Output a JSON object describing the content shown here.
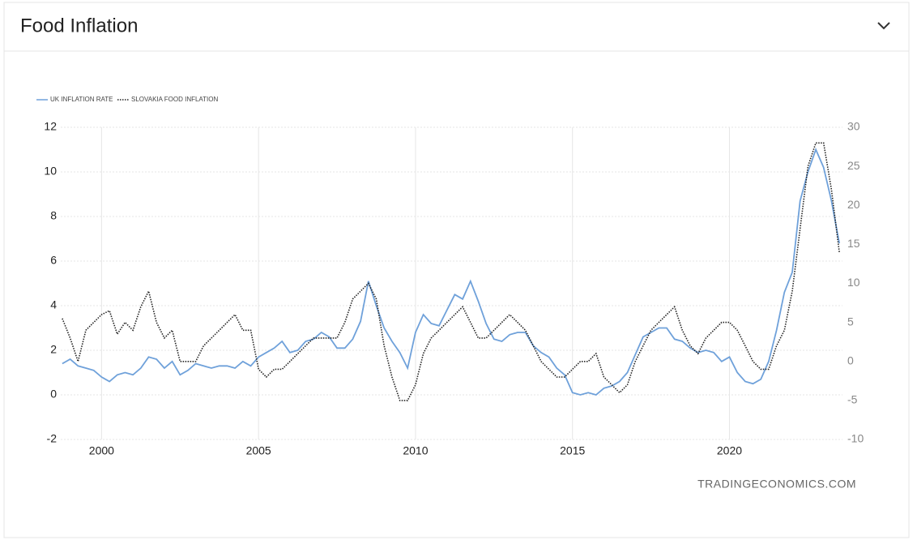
{
  "chart_data": {
    "type": "line",
    "title": "Food Inflation",
    "source": "TRADINGECONOMICS.COM",
    "x": [
      1998.75,
      1999,
      1999.25,
      1999.5,
      1999.75,
      2000,
      2000.25,
      2000.5,
      2000.75,
      2001,
      2001.25,
      2001.5,
      2001.75,
      2002,
      2002.25,
      2002.5,
      2002.75,
      2003,
      2003.25,
      2003.5,
      2003.75,
      2004,
      2004.25,
      2004.5,
      2004.75,
      2005,
      2005.25,
      2005.5,
      2005.75,
      2006,
      2006.25,
      2006.5,
      2006.75,
      2007,
      2007.25,
      2007.5,
      2007.75,
      2008,
      2008.25,
      2008.5,
      2008.75,
      2009,
      2009.25,
      2009.5,
      2009.75,
      2010,
      2010.25,
      2010.5,
      2010.75,
      2011,
      2011.25,
      2011.5,
      2011.75,
      2012,
      2012.25,
      2012.5,
      2012.75,
      2013,
      2013.25,
      2013.5,
      2013.75,
      2014,
      2014.25,
      2014.5,
      2014.75,
      2015,
      2015.25,
      2015.5,
      2015.75,
      2016,
      2016.25,
      2016.5,
      2016.75,
      2017,
      2017.25,
      2017.5,
      2017.75,
      2018,
      2018.25,
      2018.5,
      2018.75,
      2019,
      2019.25,
      2019.5,
      2019.75,
      2020,
      2020.25,
      2020.5,
      2020.75,
      2021,
      2021.25,
      2021.5,
      2021.75,
      2022,
      2022.25,
      2022.5,
      2022.75,
      2023,
      2023.25,
      2023.5
    ],
    "series": [
      {
        "name": "UK INFLATION RATE",
        "color": "#6fa1da",
        "axis": "y",
        "values": [
          1.4,
          1.6,
          1.3,
          1.2,
          1.1,
          0.8,
          0.6,
          0.9,
          1.0,
          0.9,
          1.2,
          1.7,
          1.6,
          1.2,
          1.5,
          0.9,
          1.1,
          1.4,
          1.3,
          1.2,
          1.3,
          1.3,
          1.2,
          1.5,
          1.3,
          1.7,
          1.9,
          2.1,
          2.4,
          1.9,
          2.0,
          2.4,
          2.5,
          2.8,
          2.6,
          2.1,
          2.1,
          2.5,
          3.3,
          5.1,
          4.0,
          3.0,
          2.4,
          1.9,
          1.2,
          2.8,
          3.6,
          3.2,
          3.1,
          3.8,
          4.5,
          4.3,
          5.1,
          4.2,
          3.2,
          2.5,
          2.4,
          2.7,
          2.8,
          2.8,
          2.2,
          1.9,
          1.7,
          1.2,
          0.9,
          0.1,
          0.0,
          0.1,
          0.0,
          0.3,
          0.4,
          0.6,
          1.0,
          1.8,
          2.6,
          2.8,
          3.0,
          3.0,
          2.5,
          2.4,
          2.1,
          1.9,
          2.0,
          1.9,
          1.5,
          1.7,
          1.0,
          0.6,
          0.5,
          0.7,
          1.5,
          2.9,
          4.6,
          5.5,
          8.7,
          10.0,
          11.0,
          10.2,
          8.7,
          6.8
        ]
      },
      {
        "name": "SLOVAKIA FOOD INFLATION",
        "color": "#222222",
        "axis": "y2",
        "dashed": true,
        "values": [
          5.5,
          3,
          0,
          4,
          5,
          6,
          6.5,
          3.5,
          5,
          4,
          7,
          9,
          5,
          3,
          4,
          0,
          0,
          0,
          2,
          3,
          4,
          5,
          6,
          4,
          4,
          -1,
          -2,
          -1,
          -1,
          0,
          1,
          2,
          3,
          3,
          3,
          3,
          5,
          8,
          9,
          10,
          8,
          2,
          -2,
          -5,
          -5,
          -3,
          1,
          3,
          4,
          5,
          6,
          7,
          5,
          3,
          3,
          4,
          5,
          6,
          5,
          4,
          2,
          0,
          -1,
          -2,
          -2,
          -1,
          0,
          0,
          1,
          -2,
          -3,
          -4,
          -3,
          0,
          2,
          4,
          5,
          6,
          7,
          4,
          2,
          1,
          3,
          4,
          5,
          5,
          4,
          2,
          0,
          -1,
          -1,
          2,
          4,
          9,
          17,
          25,
          28,
          28,
          22,
          14
        ]
      }
    ],
    "xlim": [
      1998.7,
      2023.6
    ],
    "xticks": [
      2000,
      2005,
      2010,
      2015,
      2020
    ],
    "ylim": [
      -2,
      12
    ],
    "yticks": [
      -2,
      0,
      2,
      4,
      6,
      8,
      10,
      12
    ],
    "y2lim": [
      -10,
      30
    ],
    "y2ticks": [
      -10,
      -5,
      0,
      5,
      10,
      15,
      20,
      25,
      30
    ],
    "grid": true,
    "legend": "top-left"
  }
}
